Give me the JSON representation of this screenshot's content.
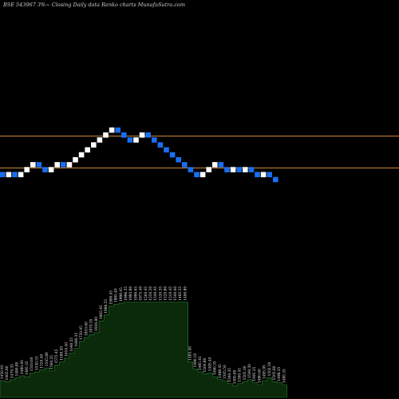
{
  "chart_data": {
    "type": "renko",
    "title": "BSE 543967 3%~  Closing Daily data  Renko  charts MunafaSutra.com",
    "colors": {
      "background": "#000000",
      "up_brick": "#ffffff",
      "down_brick": "#1a6ff0",
      "reference_line": "#c8863a",
      "volume_fill": "#0a2a0a",
      "volume_line": "#2e7d2e"
    },
    "reference_lines": [
      "upper",
      "lower"
    ],
    "bricks": [
      "D",
      "U",
      "D",
      "U",
      "U",
      "U",
      "D",
      "D",
      "U",
      "U",
      "D",
      "U",
      "U",
      "U",
      "U",
      "U",
      "U",
      "U",
      "U",
      "D",
      "D",
      "D",
      "U",
      "U",
      "D",
      "D",
      "D",
      "D",
      "D",
      "D",
      "D",
      "D",
      "D",
      "U",
      "U",
      "U",
      "D",
      "D",
      "U",
      "D",
      "U",
      "D",
      "D",
      "U",
      "D",
      "D"
    ],
    "volume_labels": [
      "1450.45",
      "1465.80",
      "1470.35",
      "1490.80",
      "1480.40",
      "1495.35",
      "1510.60",
      "1530.55",
      "1520.40",
      "1545.80",
      "1560.35",
      "1575.45",
      "1590.50",
      "1610.40",
      "1640.55",
      "1690.35",
      "1750.45",
      "1810.60",
      "1870.35",
      "1930.80",
      "1965.45",
      "1989.55",
      "1990.45",
      "1995.40",
      "1998.45",
      "1996.35",
      "1993.80",
      "1990.65",
      "1975.40",
      "1560.45",
      "1550.50",
      "1540.45",
      "1530.35",
      "1520.80",
      "1510.45",
      "1500.60",
      "1495.55",
      "1490.80",
      "1485.40",
      "1490.35",
      "1495.45",
      "1500.80",
      "1495.40",
      "1490.35",
      "1498.45",
      "1505.50",
      "1500.35",
      "1495.80",
      "1500.45",
      "1505.30",
      "1500.30",
      "1495.35",
      "1490.60",
      "1495.95",
      "1502.30",
      "1505.80",
      "1498.35",
      "1495.35"
    ],
    "volume_heights": [
      0.17,
      0.16,
      0.18,
      0.2,
      0.22,
      0.21,
      0.25,
      0.26,
      0.28,
      0.3,
      0.27,
      0.33,
      0.36,
      0.4,
      0.45,
      0.5,
      0.57,
      0.61,
      0.64,
      0.66,
      0.78,
      0.84,
      0.93,
      0.95,
      0.96,
      0.97,
      0.97,
      0.97,
      0.97,
      0.97,
      0.97,
      0.97,
      0.97,
      0.97,
      0.97,
      0.97,
      0.97,
      0.97,
      0.36,
      0.29,
      0.26,
      0.24,
      0.25,
      0.21,
      0.18,
      0.17,
      0.14,
      0.12,
      0.14,
      0.16,
      0.18,
      0.15,
      0.13,
      0.17,
      0.2,
      0.16,
      0.15,
      0.13
    ]
  }
}
